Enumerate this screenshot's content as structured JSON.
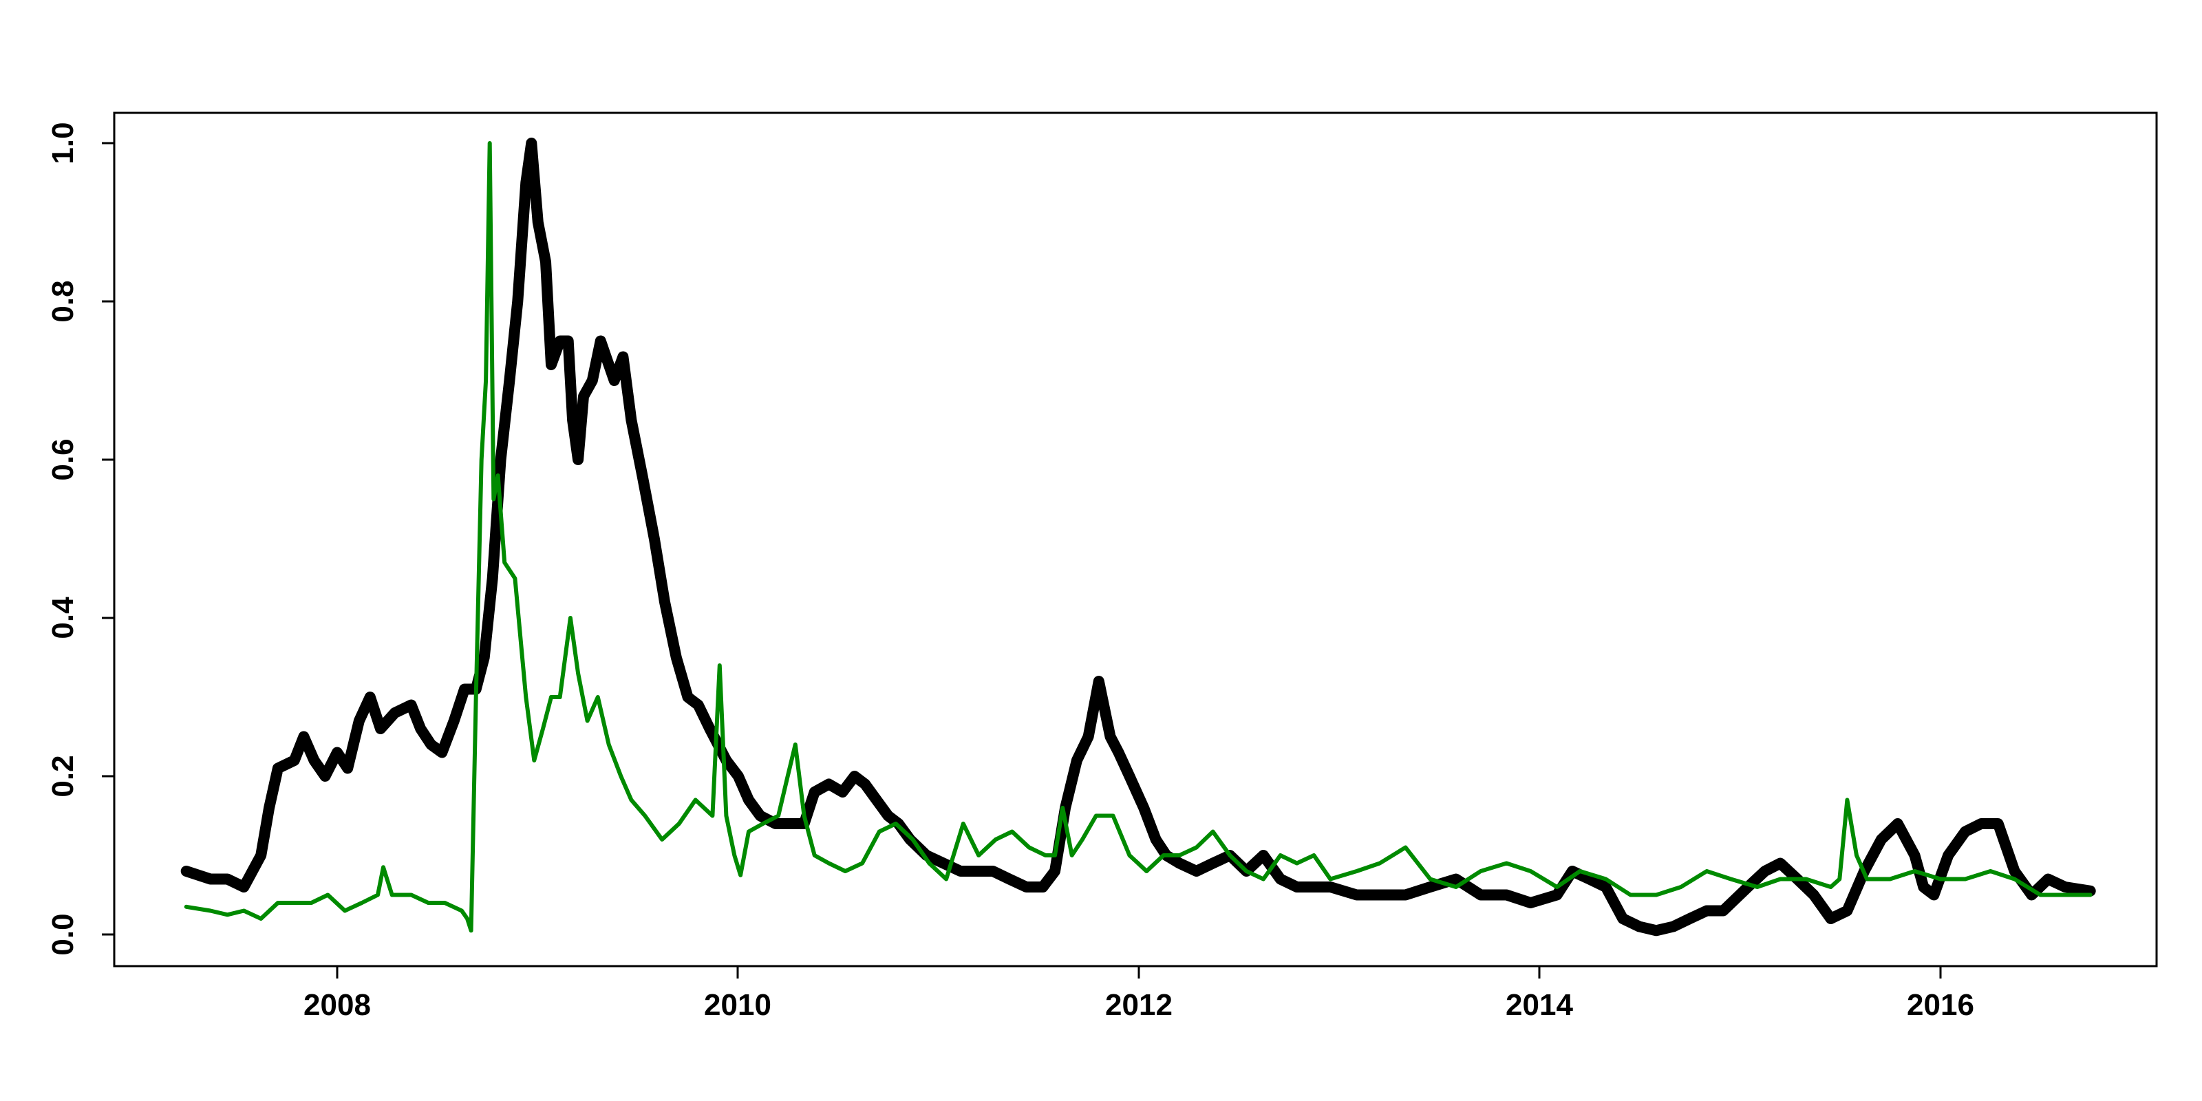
{
  "chart_data": {
    "type": "line",
    "title": "",
    "xlabel": "",
    "ylabel": "",
    "xlim": [
      "2007-04-01",
      "2016-09-30"
    ],
    "ylim": [
      0,
      1
    ],
    "x_ticks": [
      "2008",
      "2010",
      "2012",
      "2014",
      "2016"
    ],
    "y_ticks": [
      "0.0",
      "0.2",
      "0.4",
      "0.6",
      "0.8",
      "1.0"
    ],
    "grid": false,
    "legend": "none",
    "series": [
      {
        "color": "#000000",
        "style": "thick",
        "points": [
          [
            "2007-04-01",
            0.08
          ],
          [
            "2007-05-15",
            0.07
          ],
          [
            "2007-06-15",
            0.07
          ],
          [
            "2007-07-15",
            0.06
          ],
          [
            "2007-08-15",
            0.1
          ],
          [
            "2007-08-30",
            0.16
          ],
          [
            "2007-09-15",
            0.21
          ],
          [
            "2007-10-15",
            0.22
          ],
          [
            "2007-11-01",
            0.25
          ],
          [
            "2007-11-20",
            0.22
          ],
          [
            "2007-12-10",
            0.2
          ],
          [
            "2008-01-01",
            0.23
          ],
          [
            "2008-01-20",
            0.21
          ],
          [
            "2008-02-10",
            0.27
          ],
          [
            "2008-03-01",
            0.3
          ],
          [
            "2008-03-20",
            0.26
          ],
          [
            "2008-04-15",
            0.28
          ],
          [
            "2008-05-15",
            0.29
          ],
          [
            "2008-06-01",
            0.26
          ],
          [
            "2008-06-20",
            0.24
          ],
          [
            "2008-07-10",
            0.23
          ],
          [
            "2008-08-01",
            0.27
          ],
          [
            "2008-08-20",
            0.31
          ],
          [
            "2008-09-10",
            0.31
          ],
          [
            "2008-09-25",
            0.35
          ],
          [
            "2008-10-10",
            0.45
          ],
          [
            "2008-10-25",
            0.6
          ],
          [
            "2008-11-10",
            0.7
          ],
          [
            "2008-11-25",
            0.8
          ],
          [
            "2008-12-10",
            0.95
          ],
          [
            "2008-12-20",
            1.0
          ],
          [
            "2009-01-01",
            0.9
          ],
          [
            "2009-01-15",
            0.85
          ],
          [
            "2009-01-25",
            0.72
          ],
          [
            "2009-02-10",
            0.75
          ],
          [
            "2009-02-25",
            0.75
          ],
          [
            "2009-03-05",
            0.65
          ],
          [
            "2009-03-15",
            0.6
          ],
          [
            "2009-03-25",
            0.68
          ],
          [
            "2009-04-10",
            0.7
          ],
          [
            "2009-04-25",
            0.75
          ],
          [
            "2009-05-10",
            0.72
          ],
          [
            "2009-05-20",
            0.7
          ],
          [
            "2009-06-05",
            0.73
          ],
          [
            "2009-06-20",
            0.65
          ],
          [
            "2009-07-10",
            0.58
          ],
          [
            "2009-08-01",
            0.5
          ],
          [
            "2009-08-20",
            0.42
          ],
          [
            "2009-09-10",
            0.35
          ],
          [
            "2009-10-01",
            0.3
          ],
          [
            "2009-10-20",
            0.29
          ],
          [
            "2009-11-10",
            0.26
          ],
          [
            "2009-12-10",
            0.22
          ],
          [
            "2010-01-01",
            0.2
          ],
          [
            "2010-01-20",
            0.17
          ],
          [
            "2010-02-10",
            0.15
          ],
          [
            "2010-03-10",
            0.14
          ],
          [
            "2010-04-10",
            0.14
          ],
          [
            "2010-05-01",
            0.14
          ],
          [
            "2010-05-20",
            0.18
          ],
          [
            "2010-06-15",
            0.19
          ],
          [
            "2010-07-10",
            0.18
          ],
          [
            "2010-08-01",
            0.2
          ],
          [
            "2010-08-20",
            0.19
          ],
          [
            "2010-09-10",
            0.17
          ],
          [
            "2010-10-01",
            0.15
          ],
          [
            "2010-10-20",
            0.14
          ],
          [
            "2010-11-10",
            0.12
          ],
          [
            "2010-12-10",
            0.1
          ],
          [
            "2011-01-10",
            0.09
          ],
          [
            "2011-02-10",
            0.08
          ],
          [
            "2011-03-10",
            0.08
          ],
          [
            "2011-04-10",
            0.08
          ],
          [
            "2011-05-10",
            0.07
          ],
          [
            "2011-06-10",
            0.06
          ],
          [
            "2011-07-10",
            0.06
          ],
          [
            "2011-08-01",
            0.08
          ],
          [
            "2011-08-20",
            0.16
          ],
          [
            "2011-09-10",
            0.22
          ],
          [
            "2011-10-01",
            0.25
          ],
          [
            "2011-10-20",
            0.32
          ],
          [
            "2011-11-10",
            0.25
          ],
          [
            "2011-11-25",
            0.23
          ],
          [
            "2011-12-15",
            0.2
          ],
          [
            "2012-01-10",
            0.16
          ],
          [
            "2012-02-01",
            0.12
          ],
          [
            "2012-02-20",
            0.1
          ],
          [
            "2012-03-15",
            0.09
          ],
          [
            "2012-04-15",
            0.08
          ],
          [
            "2012-05-15",
            0.09
          ],
          [
            "2012-06-15",
            0.1
          ],
          [
            "2012-07-15",
            0.08
          ],
          [
            "2012-08-15",
            0.1
          ],
          [
            "2012-09-15",
            0.07
          ],
          [
            "2012-10-15",
            0.06
          ],
          [
            "2012-11-15",
            0.06
          ],
          [
            "2012-12-15",
            0.06
          ],
          [
            "2013-02-01",
            0.05
          ],
          [
            "2013-03-15",
            0.05
          ],
          [
            "2013-05-01",
            0.05
          ],
          [
            "2013-06-15",
            0.06
          ],
          [
            "2013-08-01",
            0.07
          ],
          [
            "2013-09-15",
            0.05
          ],
          [
            "2013-11-01",
            0.05
          ],
          [
            "2013-12-15",
            0.04
          ],
          [
            "2014-02-01",
            0.05
          ],
          [
            "2014-03-01",
            0.08
          ],
          [
            "2014-04-01",
            0.07
          ],
          [
            "2014-05-01",
            0.06
          ],
          [
            "2014-06-01",
            0.02
          ],
          [
            "2014-07-01",
            0.01
          ],
          [
            "2014-08-01",
            0.005
          ],
          [
            "2014-09-01",
            0.01
          ],
          [
            "2014-10-01",
            0.02
          ],
          [
            "2014-11-01",
            0.03
          ],
          [
            "2014-12-01",
            0.03
          ],
          [
            "2015-01-15",
            0.06
          ],
          [
            "2015-02-15",
            0.08
          ],
          [
            "2015-03-15",
            0.09
          ],
          [
            "2015-04-15",
            0.07
          ],
          [
            "2015-05-15",
            0.05
          ],
          [
            "2015-06-15",
            0.02
          ],
          [
            "2015-07-15",
            0.03
          ],
          [
            "2015-08-15",
            0.08
          ],
          [
            "2015-09-15",
            0.12
          ],
          [
            "2015-10-15",
            0.14
          ],
          [
            "2015-11-15",
            0.1
          ],
          [
            "2015-12-01",
            0.06
          ],
          [
            "2015-12-20",
            0.05
          ],
          [
            "2016-01-15",
            0.1
          ],
          [
            "2016-02-15",
            0.13
          ],
          [
            "2016-03-15",
            0.14
          ],
          [
            "2016-04-15",
            0.14
          ],
          [
            "2016-05-15",
            0.08
          ],
          [
            "2016-06-15",
            0.05
          ],
          [
            "2016-07-15",
            0.07
          ],
          [
            "2016-08-15",
            0.06
          ],
          [
            "2016-09-30",
            0.055
          ]
        ]
      },
      {
        "color": "#008a00",
        "style": "thin",
        "points": [
          [
            "2007-04-01",
            0.035
          ],
          [
            "2007-05-15",
            0.03
          ],
          [
            "2007-06-15",
            0.025
          ],
          [
            "2007-07-15",
            0.03
          ],
          [
            "2007-08-15",
            0.02
          ],
          [
            "2007-09-15",
            0.04
          ],
          [
            "2007-10-15",
            0.04
          ],
          [
            "2007-11-15",
            0.04
          ],
          [
            "2007-12-15",
            0.05
          ],
          [
            "2008-01-15",
            0.03
          ],
          [
            "2008-02-15",
            0.04
          ],
          [
            "2008-03-15",
            0.05
          ],
          [
            "2008-03-25",
            0.085
          ],
          [
            "2008-04-10",
            0.05
          ],
          [
            "2008-05-15",
            0.05
          ],
          [
            "2008-06-15",
            0.04
          ],
          [
            "2008-07-15",
            0.04
          ],
          [
            "2008-08-15",
            0.03
          ],
          [
            "2008-08-25",
            0.02
          ],
          [
            "2008-09-01",
            0.005
          ],
          [
            "2008-09-10",
            0.3
          ],
          [
            "2008-09-20",
            0.6
          ],
          [
            "2008-09-28",
            0.7
          ],
          [
            "2008-10-05",
            1.0
          ],
          [
            "2008-10-12",
            0.55
          ],
          [
            "2008-10-20",
            0.58
          ],
          [
            "2008-11-01",
            0.47
          ],
          [
            "2008-11-20",
            0.45
          ],
          [
            "2008-12-10",
            0.3
          ],
          [
            "2008-12-25",
            0.22
          ],
          [
            "2009-01-10",
            0.26
          ],
          [
            "2009-01-25",
            0.3
          ],
          [
            "2009-02-10",
            0.3
          ],
          [
            "2009-03-01",
            0.4
          ],
          [
            "2009-03-15",
            0.33
          ],
          [
            "2009-04-01",
            0.27
          ],
          [
            "2009-04-20",
            0.3
          ],
          [
            "2009-05-10",
            0.24
          ],
          [
            "2009-06-01",
            0.2
          ],
          [
            "2009-06-20",
            0.17
          ],
          [
            "2009-07-15",
            0.15
          ],
          [
            "2009-08-15",
            0.12
          ],
          [
            "2009-09-15",
            0.14
          ],
          [
            "2009-10-15",
            0.17
          ],
          [
            "2009-11-15",
            0.15
          ],
          [
            "2009-11-28",
            0.34
          ],
          [
            "2009-12-10",
            0.15
          ],
          [
            "2009-12-25",
            0.1
          ],
          [
            "2010-01-05",
            0.075
          ],
          [
            "2010-01-20",
            0.13
          ],
          [
            "2010-02-15",
            0.14
          ],
          [
            "2010-03-15",
            0.15
          ],
          [
            "2010-04-01",
            0.2
          ],
          [
            "2010-04-15",
            0.24
          ],
          [
            "2010-05-01",
            0.15
          ],
          [
            "2010-05-20",
            0.1
          ],
          [
            "2010-06-15",
            0.09
          ],
          [
            "2010-07-15",
            0.08
          ],
          [
            "2010-08-15",
            0.09
          ],
          [
            "2010-09-15",
            0.13
          ],
          [
            "2010-10-15",
            0.14
          ],
          [
            "2010-11-15",
            0.12
          ],
          [
            "2010-12-15",
            0.09
          ],
          [
            "2011-01-15",
            0.07
          ],
          [
            "2011-02-15",
            0.14
          ],
          [
            "2011-03-15",
            0.1
          ],
          [
            "2011-04-15",
            0.12
          ],
          [
            "2011-05-15",
            0.13
          ],
          [
            "2011-06-15",
            0.11
          ],
          [
            "2011-07-15",
            0.1
          ],
          [
            "2011-08-01",
            0.1
          ],
          [
            "2011-08-15",
            0.16
          ],
          [
            "2011-09-01",
            0.1
          ],
          [
            "2011-09-20",
            0.12
          ],
          [
            "2011-10-15",
            0.15
          ],
          [
            "2011-11-15",
            0.15
          ],
          [
            "2011-12-15",
            0.1
          ],
          [
            "2012-01-15",
            0.08
          ],
          [
            "2012-02-15",
            0.1
          ],
          [
            "2012-03-15",
            0.1
          ],
          [
            "2012-04-15",
            0.11
          ],
          [
            "2012-05-15",
            0.13
          ],
          [
            "2012-06-15",
            0.1
          ],
          [
            "2012-07-15",
            0.08
          ],
          [
            "2012-08-15",
            0.07
          ],
          [
            "2012-09-15",
            0.1
          ],
          [
            "2012-10-15",
            0.09
          ],
          [
            "2012-11-15",
            0.1
          ],
          [
            "2012-12-15",
            0.07
          ],
          [
            "2013-02-01",
            0.08
          ],
          [
            "2013-03-15",
            0.09
          ],
          [
            "2013-05-01",
            0.11
          ],
          [
            "2013-06-15",
            0.07
          ],
          [
            "2013-08-01",
            0.06
          ],
          [
            "2013-09-15",
            0.08
          ],
          [
            "2013-11-01",
            0.09
          ],
          [
            "2013-12-15",
            0.08
          ],
          [
            "2014-02-01",
            0.06
          ],
          [
            "2014-03-15",
            0.08
          ],
          [
            "2014-05-01",
            0.07
          ],
          [
            "2014-06-15",
            0.05
          ],
          [
            "2014-08-01",
            0.05
          ],
          [
            "2014-09-15",
            0.06
          ],
          [
            "2014-11-01",
            0.08
          ],
          [
            "2014-12-15",
            0.07
          ],
          [
            "2015-02-01",
            0.06
          ],
          [
            "2015-03-15",
            0.07
          ],
          [
            "2015-05-01",
            0.07
          ],
          [
            "2015-06-15",
            0.06
          ],
          [
            "2015-07-01",
            0.07
          ],
          [
            "2015-07-15",
            0.17
          ],
          [
            "2015-08-01",
            0.1
          ],
          [
            "2015-08-20",
            0.07
          ],
          [
            "2015-10-01",
            0.07
          ],
          [
            "2015-11-15",
            0.08
          ],
          [
            "2016-01-01",
            0.07
          ],
          [
            "2016-02-15",
            0.07
          ],
          [
            "2016-04-01",
            0.08
          ],
          [
            "2016-05-15",
            0.07
          ],
          [
            "2016-07-01",
            0.05
          ],
          [
            "2016-08-15",
            0.05
          ],
          [
            "2016-09-30",
            0.05
          ]
        ]
      }
    ]
  }
}
